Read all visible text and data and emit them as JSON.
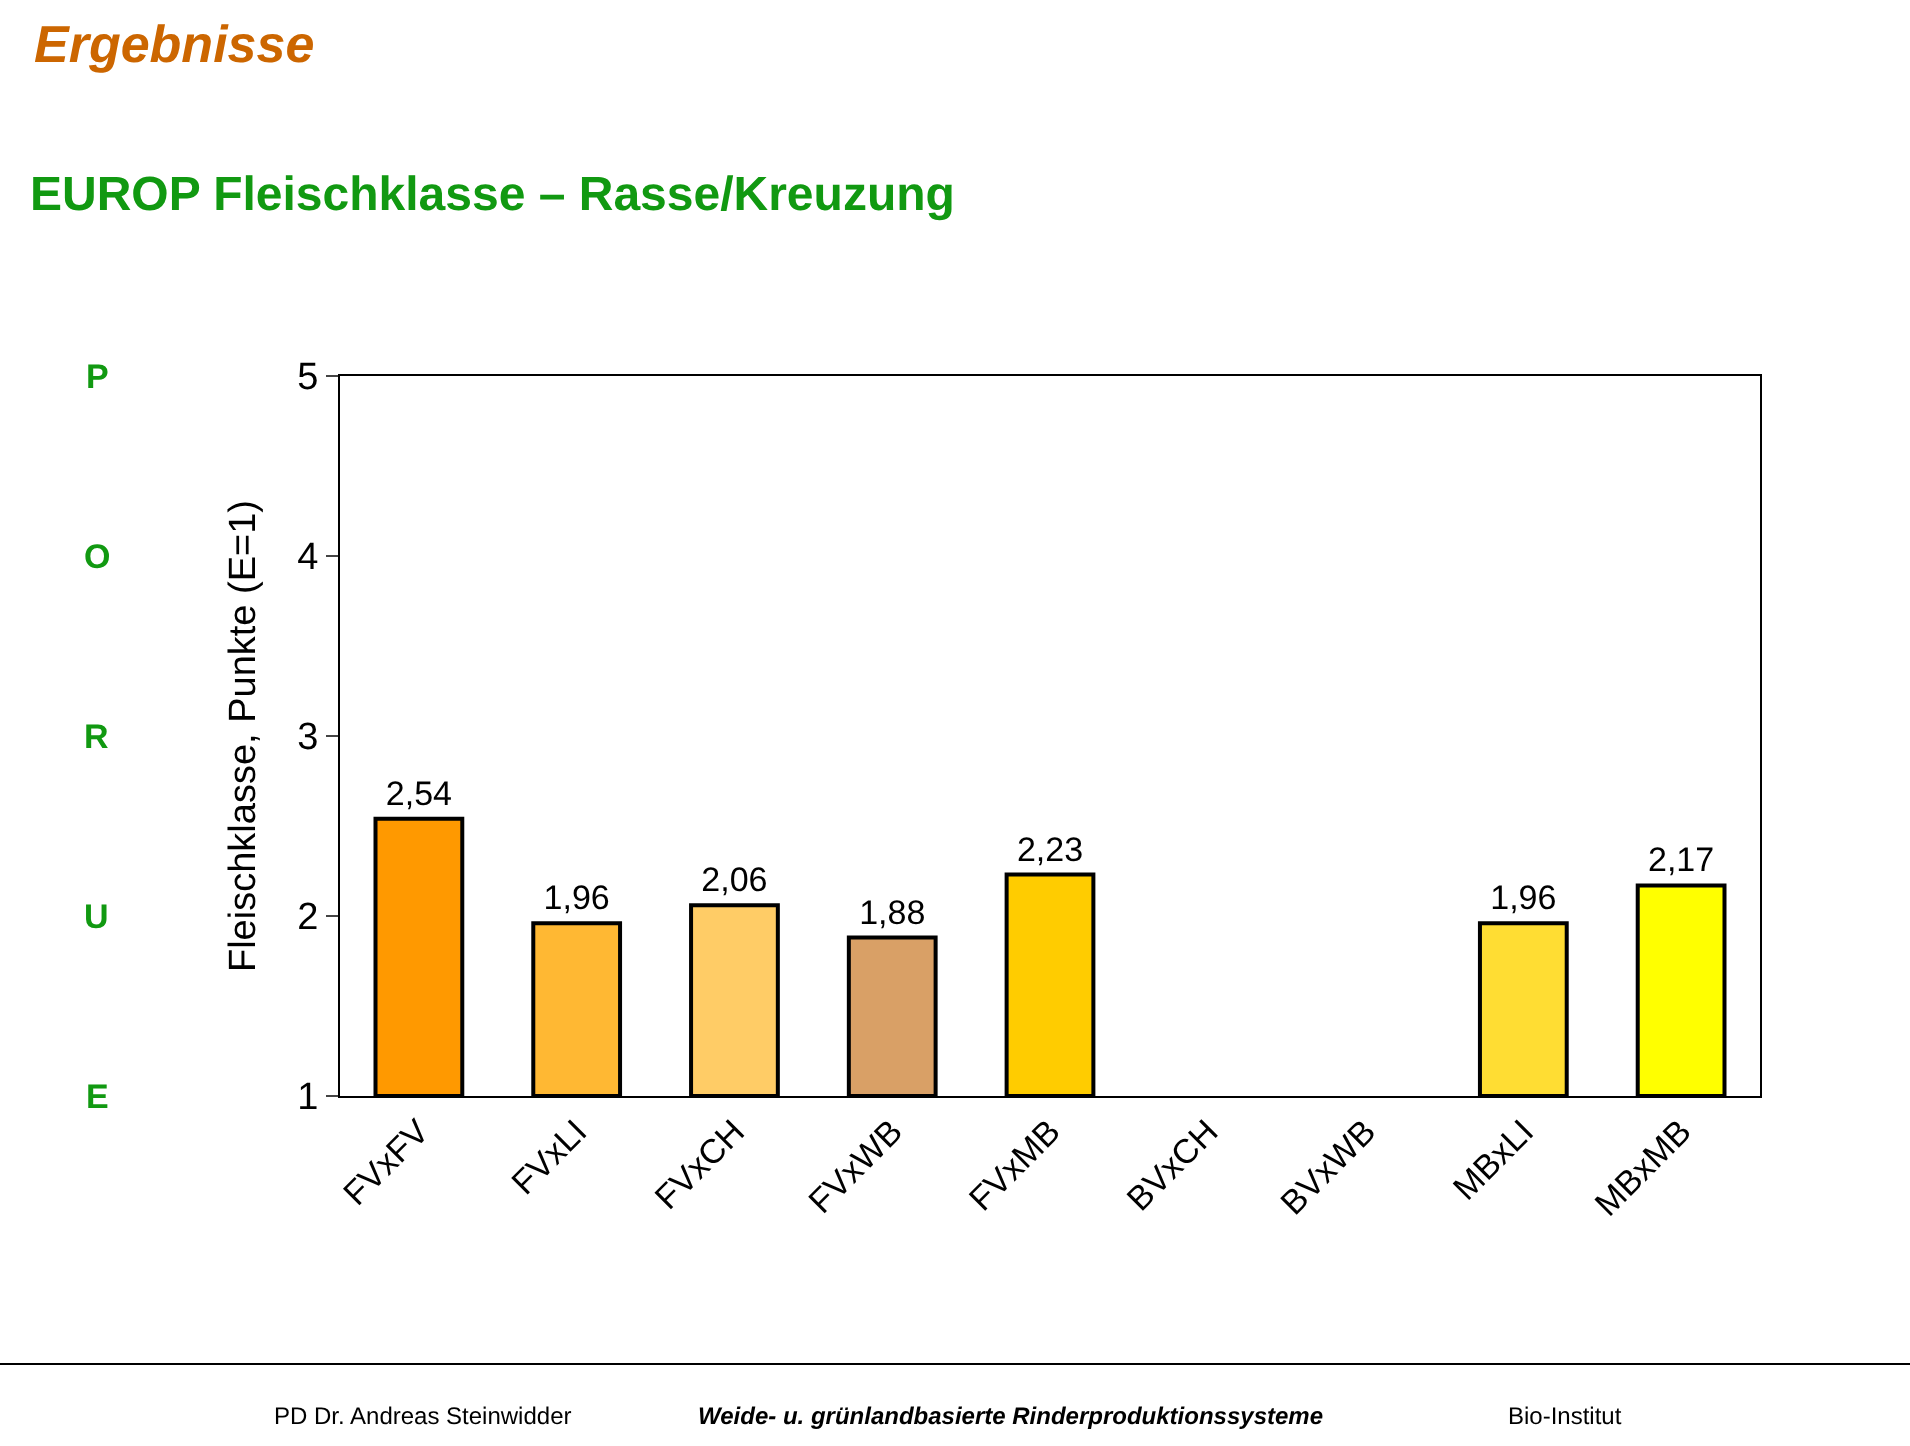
{
  "chart_data": {
    "type": "bar",
    "title": "EUROP Fleischklasse – Rasse/Kreuzung",
    "ylabel": "Fleischklasse, Punkte (E=1)",
    "categories": [
      "FVxFV",
      "FVxLI",
      "FVxCH",
      "FVxWB",
      "FVxMB",
      "BVxCH",
      "BVxWB",
      "MBxLI",
      "MBxMB"
    ],
    "values": [
      2.54,
      1.96,
      2.06,
      1.88,
      2.23,
      null,
      null,
      1.96,
      2.17
    ],
    "colors": [
      "#ff9900",
      "#ffb833",
      "#ffcc66",
      "#d9a066",
      "#ffcc00",
      "#ffffff",
      "#ffffff",
      "#ffdd33",
      "#ffff00"
    ],
    "value_labels": [
      "2,54",
      "1,96",
      "2,06",
      "1,88",
      "2,23",
      null,
      null,
      "1,96",
      "2,17"
    ],
    "ylim": [
      1,
      5
    ],
    "yticks": [
      1,
      2,
      3,
      4,
      5
    ],
    "annotations": [
      "Ergebnisse",
      "P",
      "O",
      "R",
      "U",
      "E",
      "PD Dr. Andreas Steinwidder",
      "Weide- u. grünlandbasierte Rinderproduktionssysteme",
      "Bio-Institut"
    ]
  }
}
